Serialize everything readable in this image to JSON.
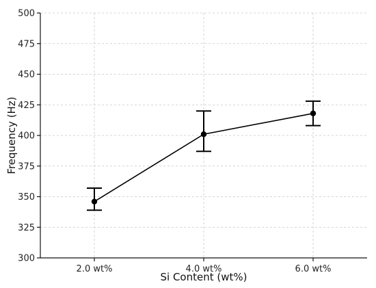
{
  "chart_data": {
    "type": "line",
    "title": "",
    "xlabel": "Si Content (wt%)",
    "ylabel": "Frequency (Hz)",
    "categories": [
      "2.0 wt%",
      "4.0 wt%",
      "6.0 wt%"
    ],
    "values": [
      346,
      401,
      418
    ],
    "error_upper": [
      357,
      420,
      428
    ],
    "error_lower": [
      339,
      387,
      408
    ],
    "ylim": [
      300,
      500
    ],
    "yticks": [
      300,
      325,
      350,
      375,
      400,
      425,
      450,
      475,
      500
    ],
    "grid": true,
    "legend": "none",
    "line_color": "#000000",
    "marker": "circle"
  }
}
